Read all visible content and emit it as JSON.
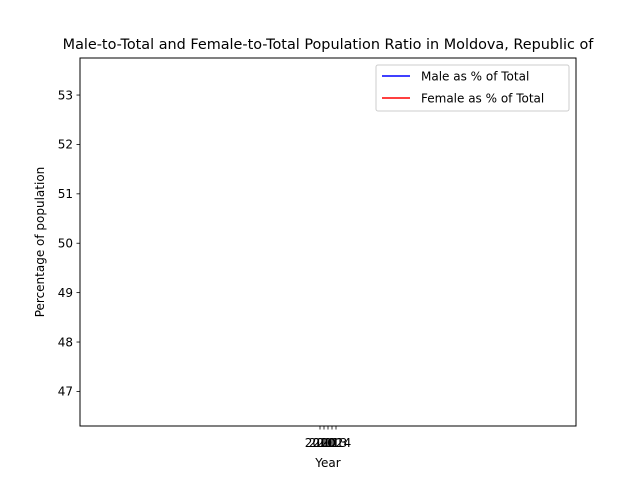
{
  "chart_data": {
    "type": "line",
    "title": "Male-to-Total and Female-to-Total Population Ratio in Moldova, Republic of",
    "xlabel": "Year",
    "ylabel": "Percentage of population",
    "ylim": [
      46.3,
      53.75
    ],
    "yticks": [
      "47",
      "48",
      "49",
      "50",
      "51",
      "52",
      "53"
    ],
    "xticks": [
      "2010",
      "2011",
      "2012",
      "2013",
      "2014"
    ],
    "series": [
      {
        "name": "Male as % of Total",
        "color": "#0000ff",
        "x": [],
        "values": []
      },
      {
        "name": "Female as % of Total",
        "color": "#ff0000",
        "x": [],
        "values": []
      }
    ],
    "legend": "top-right",
    "grid": false
  }
}
